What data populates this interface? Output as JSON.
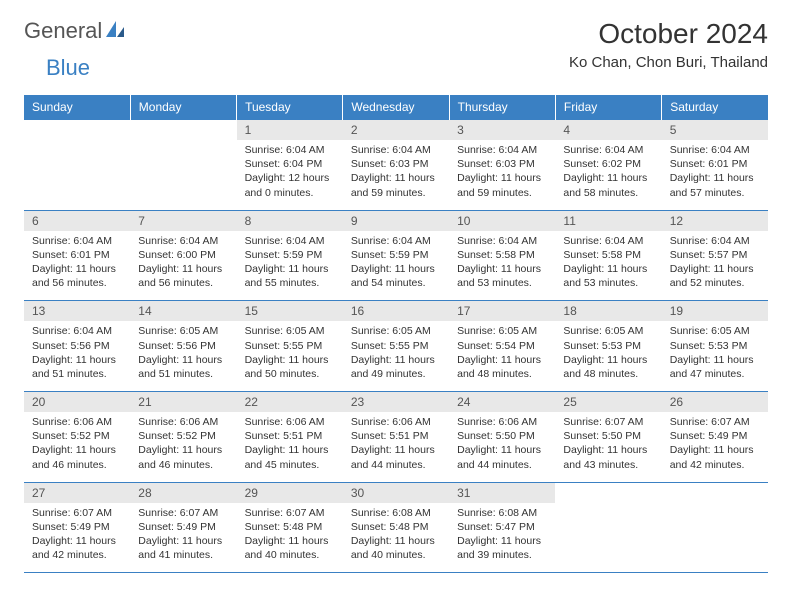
{
  "logo": {
    "text1": "General",
    "text2": "Blue"
  },
  "title": "October 2024",
  "location": "Ko Chan, Chon Buri, Thailand",
  "colors": {
    "header_bg": "#3a80c3",
    "header_text": "#ffffff",
    "daynum_bg": "#e8e8e8",
    "border": "#3a80c3",
    "body_text": "#333333",
    "logo_gray": "#555555",
    "logo_blue": "#3a80c3",
    "page_bg": "#ffffff"
  },
  "day_headers": [
    "Sunday",
    "Monday",
    "Tuesday",
    "Wednesday",
    "Thursday",
    "Friday",
    "Saturday"
  ],
  "weeks": [
    [
      null,
      null,
      {
        "n": "1",
        "sr": "Sunrise: 6:04 AM",
        "ss": "Sunset: 6:04 PM",
        "dl": "Daylight: 12 hours and 0 minutes."
      },
      {
        "n": "2",
        "sr": "Sunrise: 6:04 AM",
        "ss": "Sunset: 6:03 PM",
        "dl": "Daylight: 11 hours and 59 minutes."
      },
      {
        "n": "3",
        "sr": "Sunrise: 6:04 AM",
        "ss": "Sunset: 6:03 PM",
        "dl": "Daylight: 11 hours and 59 minutes."
      },
      {
        "n": "4",
        "sr": "Sunrise: 6:04 AM",
        "ss": "Sunset: 6:02 PM",
        "dl": "Daylight: 11 hours and 58 minutes."
      },
      {
        "n": "5",
        "sr": "Sunrise: 6:04 AM",
        "ss": "Sunset: 6:01 PM",
        "dl": "Daylight: 11 hours and 57 minutes."
      }
    ],
    [
      {
        "n": "6",
        "sr": "Sunrise: 6:04 AM",
        "ss": "Sunset: 6:01 PM",
        "dl": "Daylight: 11 hours and 56 minutes."
      },
      {
        "n": "7",
        "sr": "Sunrise: 6:04 AM",
        "ss": "Sunset: 6:00 PM",
        "dl": "Daylight: 11 hours and 56 minutes."
      },
      {
        "n": "8",
        "sr": "Sunrise: 6:04 AM",
        "ss": "Sunset: 5:59 PM",
        "dl": "Daylight: 11 hours and 55 minutes."
      },
      {
        "n": "9",
        "sr": "Sunrise: 6:04 AM",
        "ss": "Sunset: 5:59 PM",
        "dl": "Daylight: 11 hours and 54 minutes."
      },
      {
        "n": "10",
        "sr": "Sunrise: 6:04 AM",
        "ss": "Sunset: 5:58 PM",
        "dl": "Daylight: 11 hours and 53 minutes."
      },
      {
        "n": "11",
        "sr": "Sunrise: 6:04 AM",
        "ss": "Sunset: 5:58 PM",
        "dl": "Daylight: 11 hours and 53 minutes."
      },
      {
        "n": "12",
        "sr": "Sunrise: 6:04 AM",
        "ss": "Sunset: 5:57 PM",
        "dl": "Daylight: 11 hours and 52 minutes."
      }
    ],
    [
      {
        "n": "13",
        "sr": "Sunrise: 6:04 AM",
        "ss": "Sunset: 5:56 PM",
        "dl": "Daylight: 11 hours and 51 minutes."
      },
      {
        "n": "14",
        "sr": "Sunrise: 6:05 AM",
        "ss": "Sunset: 5:56 PM",
        "dl": "Daylight: 11 hours and 51 minutes."
      },
      {
        "n": "15",
        "sr": "Sunrise: 6:05 AM",
        "ss": "Sunset: 5:55 PM",
        "dl": "Daylight: 11 hours and 50 minutes."
      },
      {
        "n": "16",
        "sr": "Sunrise: 6:05 AM",
        "ss": "Sunset: 5:55 PM",
        "dl": "Daylight: 11 hours and 49 minutes."
      },
      {
        "n": "17",
        "sr": "Sunrise: 6:05 AM",
        "ss": "Sunset: 5:54 PM",
        "dl": "Daylight: 11 hours and 48 minutes."
      },
      {
        "n": "18",
        "sr": "Sunrise: 6:05 AM",
        "ss": "Sunset: 5:53 PM",
        "dl": "Daylight: 11 hours and 48 minutes."
      },
      {
        "n": "19",
        "sr": "Sunrise: 6:05 AM",
        "ss": "Sunset: 5:53 PM",
        "dl": "Daylight: 11 hours and 47 minutes."
      }
    ],
    [
      {
        "n": "20",
        "sr": "Sunrise: 6:06 AM",
        "ss": "Sunset: 5:52 PM",
        "dl": "Daylight: 11 hours and 46 minutes."
      },
      {
        "n": "21",
        "sr": "Sunrise: 6:06 AM",
        "ss": "Sunset: 5:52 PM",
        "dl": "Daylight: 11 hours and 46 minutes."
      },
      {
        "n": "22",
        "sr": "Sunrise: 6:06 AM",
        "ss": "Sunset: 5:51 PM",
        "dl": "Daylight: 11 hours and 45 minutes."
      },
      {
        "n": "23",
        "sr": "Sunrise: 6:06 AM",
        "ss": "Sunset: 5:51 PM",
        "dl": "Daylight: 11 hours and 44 minutes."
      },
      {
        "n": "24",
        "sr": "Sunrise: 6:06 AM",
        "ss": "Sunset: 5:50 PM",
        "dl": "Daylight: 11 hours and 44 minutes."
      },
      {
        "n": "25",
        "sr": "Sunrise: 6:07 AM",
        "ss": "Sunset: 5:50 PM",
        "dl": "Daylight: 11 hours and 43 minutes."
      },
      {
        "n": "26",
        "sr": "Sunrise: 6:07 AM",
        "ss": "Sunset: 5:49 PM",
        "dl": "Daylight: 11 hours and 42 minutes."
      }
    ],
    [
      {
        "n": "27",
        "sr": "Sunrise: 6:07 AM",
        "ss": "Sunset: 5:49 PM",
        "dl": "Daylight: 11 hours and 42 minutes."
      },
      {
        "n": "28",
        "sr": "Sunrise: 6:07 AM",
        "ss": "Sunset: 5:49 PM",
        "dl": "Daylight: 11 hours and 41 minutes."
      },
      {
        "n": "29",
        "sr": "Sunrise: 6:07 AM",
        "ss": "Sunset: 5:48 PM",
        "dl": "Daylight: 11 hours and 40 minutes."
      },
      {
        "n": "30",
        "sr": "Sunrise: 6:08 AM",
        "ss": "Sunset: 5:48 PM",
        "dl": "Daylight: 11 hours and 40 minutes."
      },
      {
        "n": "31",
        "sr": "Sunrise: 6:08 AM",
        "ss": "Sunset: 5:47 PM",
        "dl": "Daylight: 11 hours and 39 minutes."
      },
      null,
      null
    ]
  ]
}
